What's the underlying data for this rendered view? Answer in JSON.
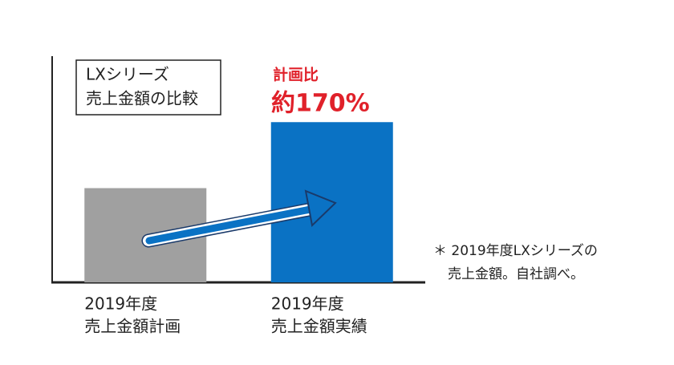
{
  "chart_data": {
    "type": "bar",
    "title": [
      "LXシリーズ",
      "売上金額の比較"
    ],
    "categories": [
      [
        "2019年度",
        "売上金額計画"
      ],
      [
        "2019年度",
        "売上金額実績"
      ]
    ],
    "values": [
      100,
      170
    ],
    "colors": [
      "#a0a0a0",
      "#0a72c4"
    ],
    "ylim": [
      0,
      240
    ],
    "annotation": [
      "計画比",
      "約170%"
    ],
    "footnote": [
      "＊ 2019年度LXシリーズの",
      "売上金額。自社調べ。"
    ]
  }
}
